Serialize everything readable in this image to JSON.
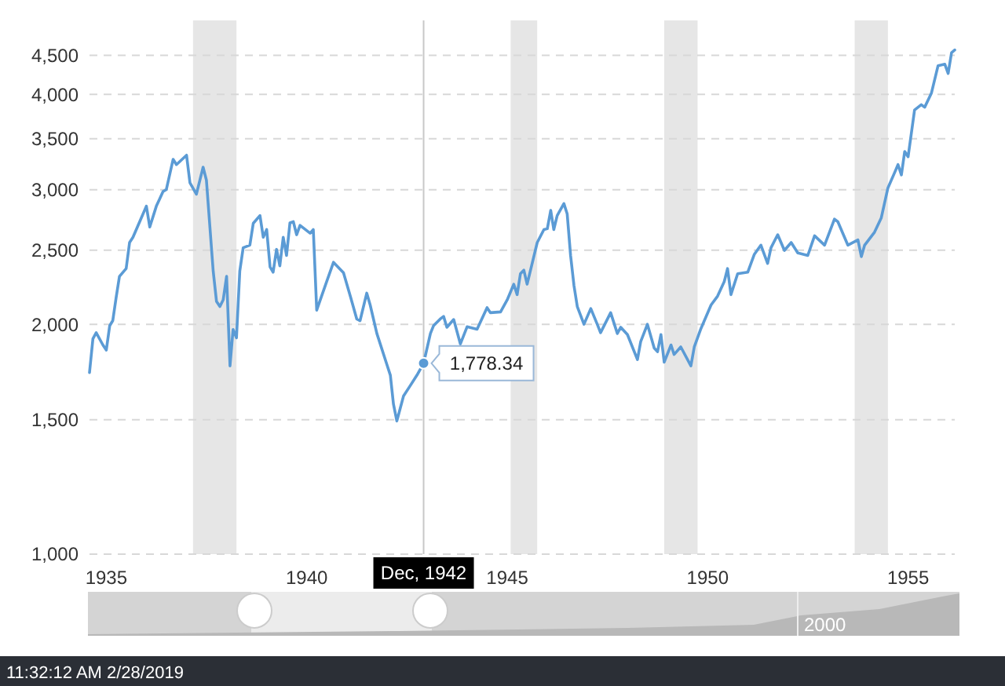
{
  "chart_data": {
    "type": "line",
    "xlim": [
      "1934-08",
      "1956-03"
    ],
    "xticks": [
      "1935",
      "1940",
      "1945",
      "1950",
      "1955"
    ],
    "ylim": [
      1000,
      5000
    ],
    "log": true,
    "grid": "y",
    "line_style": "solid",
    "marker": "none",
    "yticks": [
      {
        "value": 1000,
        "label": "1,000"
      },
      {
        "value": 1500,
        "label": "1,500"
      },
      {
        "value": 2000,
        "label": "2,000"
      },
      {
        "value": 2500,
        "label": "2,500"
      },
      {
        "value": 3000,
        "label": "3,000"
      },
      {
        "value": 3500,
        "label": "3,500"
      },
      {
        "value": 4000,
        "label": "4,000"
      },
      {
        "value": 4500,
        "label": "4,500"
      }
    ],
    "bands": [
      {
        "axis": "x",
        "from": "1937-03",
        "to": "1938-04",
        "color": "#e6e6e6"
      },
      {
        "axis": "x",
        "from": "1945-02",
        "to": "1945-10",
        "color": "#e6e6e6"
      },
      {
        "axis": "x",
        "from": "1948-12",
        "to": "1949-10",
        "color": "#e6e6e6"
      },
      {
        "axis": "x",
        "from": "1953-09",
        "to": "1954-07",
        "color": "#e6e6e6"
      }
    ],
    "ref_lines": [
      {
        "axis": "x",
        "value": "1942-12",
        "label": "Dec, 1942",
        "color": "#c8c8c8"
      }
    ],
    "annotations": [
      {
        "text": "1,778.34",
        "x": "1942-12",
        "y": 1778.34
      },
      "2000",
      "11:32:12 AM 2/28/2019"
    ],
    "series": [
      {
        "color": "#5b9bd5",
        "x": [
          "1934-08",
          "1934-09",
          "1934-10",
          "1934-12",
          "1935-01",
          "1935-02",
          "1935-03",
          "1935-04",
          "1935-05",
          "1935-07",
          "1935-08",
          "1935-09",
          "1935-11",
          "1936-01",
          "1936-02",
          "1936-04",
          "1936-06",
          "1936-07",
          "1936-09",
          "1936-10",
          "1937-01",
          "1937-02",
          "1937-04",
          "1937-06",
          "1937-07",
          "1937-09",
          "1937-10",
          "1937-11",
          "1937-12",
          "1938-01",
          "1938-02",
          "1938-03",
          "1938-04",
          "1938-05",
          "1938-06",
          "1938-08",
          "1938-09",
          "1938-11",
          "1938-12",
          "1939-01",
          "1939-02",
          "1939-03",
          "1939-04",
          "1939-05",
          "1939-06",
          "1939-07",
          "1939-08",
          "1939-09",
          "1939-10",
          "1939-11",
          "1940-02",
          "1940-03",
          "1940-04",
          "1940-07",
          "1940-09",
          "1940-12",
          "1941-02",
          "1941-04",
          "1941-05",
          "1941-07",
          "1941-08",
          "1941-10",
          "1942-01",
          "1942-02",
          "1942-03",
          "1942-04",
          "1942-06",
          "1942-08",
          "1942-10",
          "1942-12",
          "1943-02",
          "1943-03",
          "1943-05",
          "1943-06",
          "1943-07",
          "1943-09",
          "1943-11",
          "1944-01",
          "1944-04",
          "1944-07",
          "1944-08",
          "1944-11",
          "1945-01",
          "1945-03",
          "1945-04",
          "1945-05",
          "1945-06",
          "1945-07",
          "1945-10",
          "1945-12",
          "1946-01",
          "1946-02",
          "1946-03",
          "1946-04",
          "1946-06",
          "1946-07",
          "1946-08",
          "1946-09",
          "1946-10",
          "1946-12",
          "1947-02",
          "1947-04",
          "1947-05",
          "1947-08",
          "1947-10",
          "1947-11",
          "1948-01",
          "1948-04",
          "1948-05",
          "1948-07",
          "1948-09",
          "1948-10",
          "1948-11",
          "1948-12",
          "1949-02",
          "1949-03",
          "1949-05",
          "1949-08",
          "1949-09",
          "1949-11",
          "1950-02",
          "1950-04",
          "1950-06",
          "1950-07",
          "1950-08",
          "1950-10",
          "1951-01",
          "1951-03",
          "1951-05",
          "1951-07",
          "1951-08",
          "1951-10",
          "1951-12",
          "1952-02",
          "1952-04",
          "1952-07",
          "1952-09",
          "1952-12",
          "1953-03",
          "1953-04",
          "1953-07",
          "1953-10",
          "1953-11",
          "1953-12",
          "1954-03",
          "1954-05",
          "1954-07",
          "1954-09",
          "1954-10",
          "1954-11",
          "1954-12",
          "1955-01",
          "1955-03",
          "1955-05",
          "1955-06",
          "1955-08",
          "1955-10",
          "1955-12",
          "1956-01",
          "1956-02",
          "1956-03"
        ],
        "values": [
          1729,
          1914,
          1950,
          1879,
          1850,
          1991,
          2022,
          2170,
          2311,
          2366,
          2559,
          2600,
          2725,
          2856,
          2682,
          2856,
          2984,
          3003,
          3289,
          3237,
          3330,
          3065,
          2961,
          3212,
          3089,
          2347,
          2143,
          2110,
          2153,
          2311,
          1764,
          1969,
          1920,
          2347,
          2519,
          2539,
          2712,
          2776,
          2600,
          2661,
          2377,
          2340,
          2507,
          2385,
          2600,
          2461,
          2715,
          2725,
          2620,
          2695,
          2632,
          2661,
          2087,
          2275,
          2411,
          2336,
          2177,
          2032,
          2022,
          2197,
          2120,
          1945,
          1770,
          1715,
          1573,
          1494,
          1611,
          1662,
          1715,
          1778.34,
          1945,
          1991,
          2032,
          2048,
          1982,
          2029,
          1885,
          1985,
          1970,
          2103,
          2071,
          2076,
          2153,
          2257,
          2187,
          2329,
          2355,
          2257,
          2559,
          2661,
          2668,
          2820,
          2661,
          2776,
          2878,
          2790,
          2461,
          2247,
          2110,
          2000,
          2097,
          2000,
          1950,
          2071,
          1945,
          1982,
          1939,
          1798,
          1899,
          2000,
          1861,
          1841,
          1939,
          1784,
          1879,
          1826,
          1868,
          1764,
          1868,
          1975,
          2120,
          2177,
          2275,
          2366,
          2187,
          2329,
          2340,
          2468,
          2539,
          2403,
          2519,
          2620,
          2499,
          2559,
          2480,
          2461,
          2612,
          2539,
          2746,
          2725,
          2539,
          2579,
          2453,
          2539,
          2640,
          2755,
          3017,
          3162,
          3237,
          3138,
          3367,
          3315,
          3817,
          3878,
          3848,
          4014,
          4362,
          4382,
          4261,
          4537,
          4573
        ]
      }
    ]
  }
}
